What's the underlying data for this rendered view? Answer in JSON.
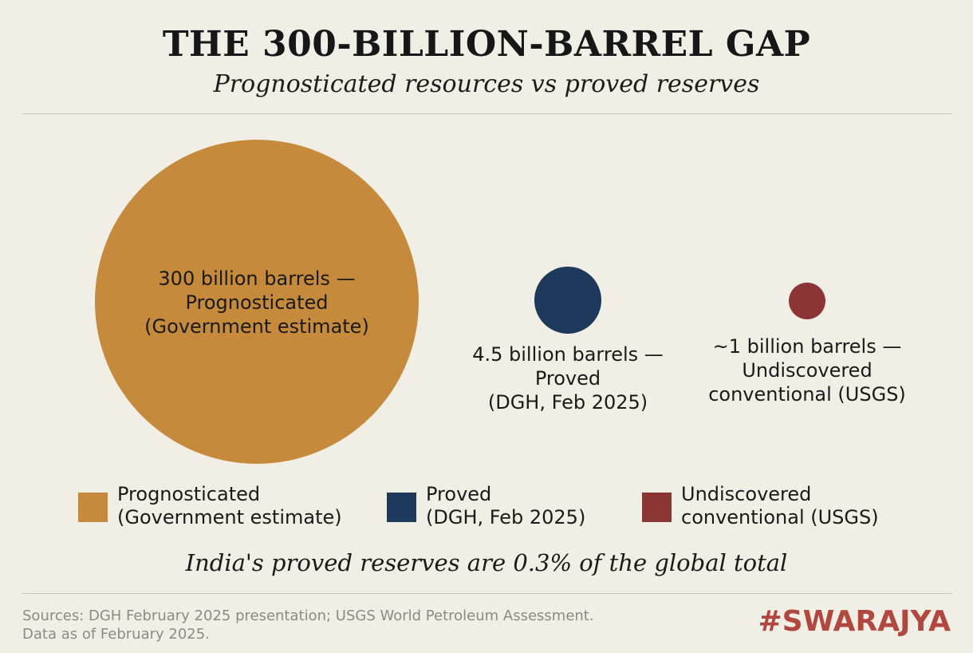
{
  "header": {
    "title": "THE 300-BILLION-BARREL GAP",
    "subtitle": "Prognosticated resources vs proved reserves"
  },
  "chart_data": {
    "type": "bubble",
    "unit": "billion barrels",
    "series": [
      {
        "name": "Prognosticated (Government estimate)",
        "value": 300,
        "color": "#c68a3c",
        "label_lines": [
          "300 billion barrels —",
          "Prognosticated",
          "(Government estimate)"
        ]
      },
      {
        "name": "Proved (DGH, Feb 2025)",
        "value": 4.5,
        "color": "#1d3a5c",
        "label_lines": [
          "4.5 billion barrels —",
          "Proved",
          "(DGH, Feb 2025)"
        ]
      },
      {
        "name": "Undiscovered conventional (USGS)",
        "value": 1,
        "color": "#8c3535",
        "label_lines": [
          "~1 billion barrels —",
          "Undiscovered",
          "conventional (USGS)"
        ]
      }
    ],
    "legend_position": "bottom"
  },
  "legend": [
    {
      "lines": [
        "Prognosticated",
        "(Government estimate)"
      ],
      "color": "#c68a3c",
      "icon": "square-swatch"
    },
    {
      "lines": [
        "Proved",
        "(DGH, Feb 2025)"
      ],
      "color": "#1d3a5c",
      "icon": "square-swatch"
    },
    {
      "lines": [
        "Undiscovered",
        "conventional (USGS)"
      ],
      "color": "#8c3535",
      "icon": "square-swatch"
    }
  ],
  "footnote": "India's proved reserves are 0.3% of the global total",
  "sources": {
    "line1": "Sources: DGH February 2025 presentation; USGS World Petroleum Assessment.",
    "line2": "Data as of February 2025."
  },
  "brand": "#SWARAJYA"
}
